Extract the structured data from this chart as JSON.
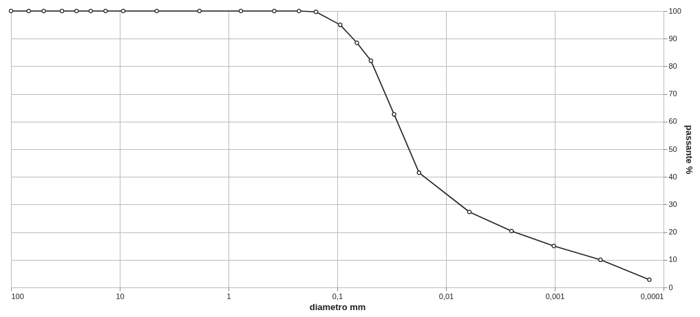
{
  "chart_data": {
    "type": "line",
    "xlabel": "diametro mm",
    "ylabel": "passante %",
    "log": "x",
    "x": [
      100,
      68.7,
      50,
      34,
      25,
      18.5,
      13.5,
      9.3,
      4.57,
      1.85,
      0.77,
      0.38,
      0.225,
      0.157,
      0.094,
      0.066,
      0.049,
      0.03,
      0.0177,
      0.0061,
      0.0025,
      0.00102,
      0.00038,
      0.000135
    ],
    "series": [
      {
        "color": "#222222",
        "values": [
          100,
          100,
          100,
          100,
          100,
          100,
          100,
          100,
          100,
          100,
          100,
          100,
          100,
          99.7,
          95,
          88.5,
          82,
          62.6,
          41.5,
          27.3,
          20.4,
          15,
          10,
          2.8
        ]
      }
    ],
    "xlim": [
      100,
      0.0001
    ],
    "xticks": [
      100,
      10,
      1,
      {
        "value": 0.1,
        "label": "0,1"
      },
      {
        "value": 0.01,
        "label": "0,01"
      },
      {
        "value": 0.001,
        "label": "0,001"
      },
      {
        "value": 0.0001,
        "label": "0,0001"
      }
    ],
    "ylim": [
      0,
      100
    ],
    "yticks": [
      0,
      10,
      20,
      30,
      40,
      50,
      60,
      70,
      80,
      90,
      100
    ],
    "grid": true,
    "marker": "circle",
    "line_style": "solid"
  }
}
